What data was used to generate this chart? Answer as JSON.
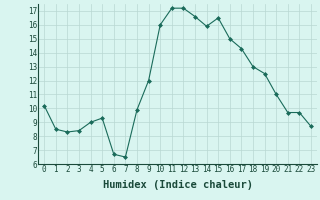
{
  "x": [
    0,
    1,
    2,
    3,
    4,
    5,
    6,
    7,
    8,
    9,
    10,
    11,
    12,
    13,
    14,
    15,
    16,
    17,
    18,
    19,
    20,
    21,
    22,
    23
  ],
  "y": [
    10.2,
    8.5,
    8.3,
    8.4,
    9.0,
    9.3,
    6.7,
    6.5,
    9.9,
    12.0,
    16.0,
    17.2,
    17.2,
    16.6,
    15.9,
    16.5,
    15.0,
    14.3,
    13.0,
    12.5,
    11.0,
    9.7,
    9.7,
    8.7
  ],
  "line_color": "#1a6b5a",
  "marker": "D",
  "marker_size": 2,
  "bg_color": "#d9f5f0",
  "grid_color": "#b8d8d2",
  "xlabel": "Humidex (Indice chaleur)",
  "ylim": [
    6,
    17.5
  ],
  "xlim": [
    -0.5,
    23.5
  ],
  "yticks": [
    6,
    7,
    8,
    9,
    10,
    11,
    12,
    13,
    14,
    15,
    16,
    17
  ],
  "xticks": [
    0,
    1,
    2,
    3,
    4,
    5,
    6,
    7,
    8,
    9,
    10,
    11,
    12,
    13,
    14,
    15,
    16,
    17,
    18,
    19,
    20,
    21,
    22,
    23
  ],
  "tick_label_fontsize": 5.5,
  "xlabel_fontsize": 7.5,
  "label_color": "#1a4a3a"
}
